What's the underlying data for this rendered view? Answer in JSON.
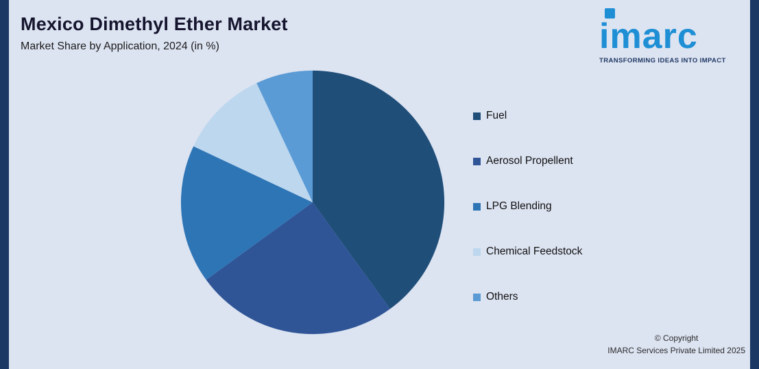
{
  "header": {
    "title": "Mexico Dimethyl Ether Market",
    "subtitle": "Market Share by Application, 2024 (in %)"
  },
  "logo": {
    "text": "imarc",
    "tagline": "TRANSFORMING IDEAS INTO IMPACT"
  },
  "footer": {
    "line1": "© Copyright",
    "line2": "IMARC Services Private Limited 2025"
  },
  "colors": {
    "background": "#dce3f1",
    "edge_bars": "#1b3764",
    "logo_blue": "#1e8fd5",
    "tagline_navy": "#1f3864"
  },
  "chart_data": {
    "type": "pie",
    "title": "Mexico Dimethyl Ether Market",
    "subtitle": "Market Share by Application, 2024 (in %)",
    "unit": "%",
    "start_angle_deg": -90,
    "direction": "clockwise",
    "legend_position": "right",
    "series": [
      {
        "name": "Fuel",
        "value": 40,
        "color": "#1f4e79"
      },
      {
        "name": "Aerosol Propellent",
        "value": 25,
        "color": "#2f5597"
      },
      {
        "name": "LPG Blending",
        "value": 17,
        "color": "#2e75b6"
      },
      {
        "name": "Chemical Feedstock",
        "value": 11,
        "color": "#bdd7ee"
      },
      {
        "name": "Others",
        "value": 7,
        "color": "#5b9bd5"
      }
    ]
  }
}
